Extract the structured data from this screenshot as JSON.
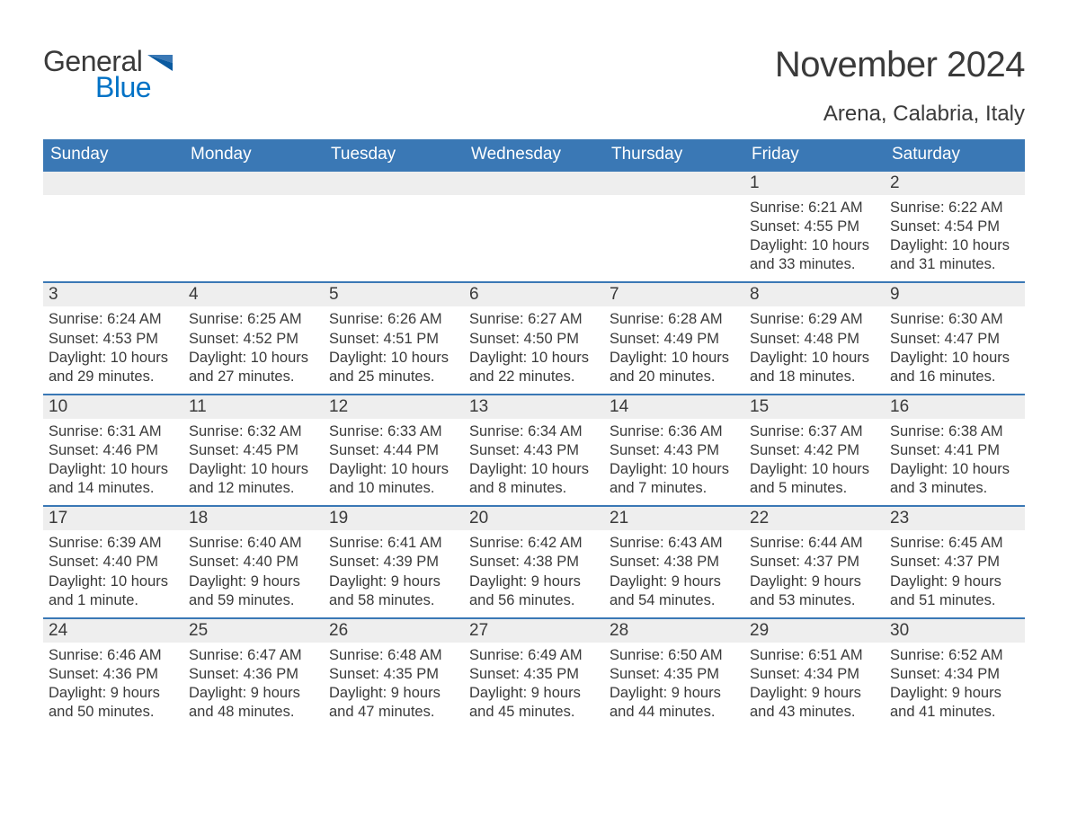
{
  "logo": {
    "text_general": "General",
    "text_blue": "Blue",
    "flag_top_color": "#3a78b5",
    "flag_bottom_color": "#0a5aa0"
  },
  "title": {
    "month_year": "November 2024",
    "location": "Arena, Calabria, Italy"
  },
  "colors": {
    "header_bg": "#3a78b5",
    "header_text": "#ffffff",
    "day_bar_bg": "#eeeeee",
    "row_border": "#3a78b5",
    "text": "#3a3a3a",
    "logo_blue": "#0072c6",
    "background": "#ffffff"
  },
  "typography": {
    "title_fontsize": 40,
    "location_fontsize": 24,
    "weekday_fontsize": 19,
    "daynum_fontsize": 19,
    "body_fontsize": 16.5,
    "logo_fontsize": 32
  },
  "weekdays": [
    "Sunday",
    "Monday",
    "Tuesday",
    "Wednesday",
    "Thursday",
    "Friday",
    "Saturday"
  ],
  "weeks": [
    [
      {
        "empty": true
      },
      {
        "empty": true
      },
      {
        "empty": true
      },
      {
        "empty": true
      },
      {
        "empty": true
      },
      {
        "day": "1",
        "sunrise": "Sunrise: 6:21 AM",
        "sunset": "Sunset: 4:55 PM",
        "daylight": "Daylight: 10 hours and 33 minutes."
      },
      {
        "day": "2",
        "sunrise": "Sunrise: 6:22 AM",
        "sunset": "Sunset: 4:54 PM",
        "daylight": "Daylight: 10 hours and 31 minutes."
      }
    ],
    [
      {
        "day": "3",
        "sunrise": "Sunrise: 6:24 AM",
        "sunset": "Sunset: 4:53 PM",
        "daylight": "Daylight: 10 hours and 29 minutes."
      },
      {
        "day": "4",
        "sunrise": "Sunrise: 6:25 AM",
        "sunset": "Sunset: 4:52 PM",
        "daylight": "Daylight: 10 hours and 27 minutes."
      },
      {
        "day": "5",
        "sunrise": "Sunrise: 6:26 AM",
        "sunset": "Sunset: 4:51 PM",
        "daylight": "Daylight: 10 hours and 25 minutes."
      },
      {
        "day": "6",
        "sunrise": "Sunrise: 6:27 AM",
        "sunset": "Sunset: 4:50 PM",
        "daylight": "Daylight: 10 hours and 22 minutes."
      },
      {
        "day": "7",
        "sunrise": "Sunrise: 6:28 AM",
        "sunset": "Sunset: 4:49 PM",
        "daylight": "Daylight: 10 hours and 20 minutes."
      },
      {
        "day": "8",
        "sunrise": "Sunrise: 6:29 AM",
        "sunset": "Sunset: 4:48 PM",
        "daylight": "Daylight: 10 hours and 18 minutes."
      },
      {
        "day": "9",
        "sunrise": "Sunrise: 6:30 AM",
        "sunset": "Sunset: 4:47 PM",
        "daylight": "Daylight: 10 hours and 16 minutes."
      }
    ],
    [
      {
        "day": "10",
        "sunrise": "Sunrise: 6:31 AM",
        "sunset": "Sunset: 4:46 PM",
        "daylight": "Daylight: 10 hours and 14 minutes."
      },
      {
        "day": "11",
        "sunrise": "Sunrise: 6:32 AM",
        "sunset": "Sunset: 4:45 PM",
        "daylight": "Daylight: 10 hours and 12 minutes."
      },
      {
        "day": "12",
        "sunrise": "Sunrise: 6:33 AM",
        "sunset": "Sunset: 4:44 PM",
        "daylight": "Daylight: 10 hours and 10 minutes."
      },
      {
        "day": "13",
        "sunrise": "Sunrise: 6:34 AM",
        "sunset": "Sunset: 4:43 PM",
        "daylight": "Daylight: 10 hours and 8 minutes."
      },
      {
        "day": "14",
        "sunrise": "Sunrise: 6:36 AM",
        "sunset": "Sunset: 4:43 PM",
        "daylight": "Daylight: 10 hours and 7 minutes."
      },
      {
        "day": "15",
        "sunrise": "Sunrise: 6:37 AM",
        "sunset": "Sunset: 4:42 PM",
        "daylight": "Daylight: 10 hours and 5 minutes."
      },
      {
        "day": "16",
        "sunrise": "Sunrise: 6:38 AM",
        "sunset": "Sunset: 4:41 PM",
        "daylight": "Daylight: 10 hours and 3 minutes."
      }
    ],
    [
      {
        "day": "17",
        "sunrise": "Sunrise: 6:39 AM",
        "sunset": "Sunset: 4:40 PM",
        "daylight": "Daylight: 10 hours and 1 minute."
      },
      {
        "day": "18",
        "sunrise": "Sunrise: 6:40 AM",
        "sunset": "Sunset: 4:40 PM",
        "daylight": "Daylight: 9 hours and 59 minutes."
      },
      {
        "day": "19",
        "sunrise": "Sunrise: 6:41 AM",
        "sunset": "Sunset: 4:39 PM",
        "daylight": "Daylight: 9 hours and 58 minutes."
      },
      {
        "day": "20",
        "sunrise": "Sunrise: 6:42 AM",
        "sunset": "Sunset: 4:38 PM",
        "daylight": "Daylight: 9 hours and 56 minutes."
      },
      {
        "day": "21",
        "sunrise": "Sunrise: 6:43 AM",
        "sunset": "Sunset: 4:38 PM",
        "daylight": "Daylight: 9 hours and 54 minutes."
      },
      {
        "day": "22",
        "sunrise": "Sunrise: 6:44 AM",
        "sunset": "Sunset: 4:37 PM",
        "daylight": "Daylight: 9 hours and 53 minutes."
      },
      {
        "day": "23",
        "sunrise": "Sunrise: 6:45 AM",
        "sunset": "Sunset: 4:37 PM",
        "daylight": "Daylight: 9 hours and 51 minutes."
      }
    ],
    [
      {
        "day": "24",
        "sunrise": "Sunrise: 6:46 AM",
        "sunset": "Sunset: 4:36 PM",
        "daylight": "Daylight: 9 hours and 50 minutes."
      },
      {
        "day": "25",
        "sunrise": "Sunrise: 6:47 AM",
        "sunset": "Sunset: 4:36 PM",
        "daylight": "Daylight: 9 hours and 48 minutes."
      },
      {
        "day": "26",
        "sunrise": "Sunrise: 6:48 AM",
        "sunset": "Sunset: 4:35 PM",
        "daylight": "Daylight: 9 hours and 47 minutes."
      },
      {
        "day": "27",
        "sunrise": "Sunrise: 6:49 AM",
        "sunset": "Sunset: 4:35 PM",
        "daylight": "Daylight: 9 hours and 45 minutes."
      },
      {
        "day": "28",
        "sunrise": "Sunrise: 6:50 AM",
        "sunset": "Sunset: 4:35 PM",
        "daylight": "Daylight: 9 hours and 44 minutes."
      },
      {
        "day": "29",
        "sunrise": "Sunrise: 6:51 AM",
        "sunset": "Sunset: 4:34 PM",
        "daylight": "Daylight: 9 hours and 43 minutes."
      },
      {
        "day": "30",
        "sunrise": "Sunrise: 6:52 AM",
        "sunset": "Sunset: 4:34 PM",
        "daylight": "Daylight: 9 hours and 41 minutes."
      }
    ]
  ]
}
